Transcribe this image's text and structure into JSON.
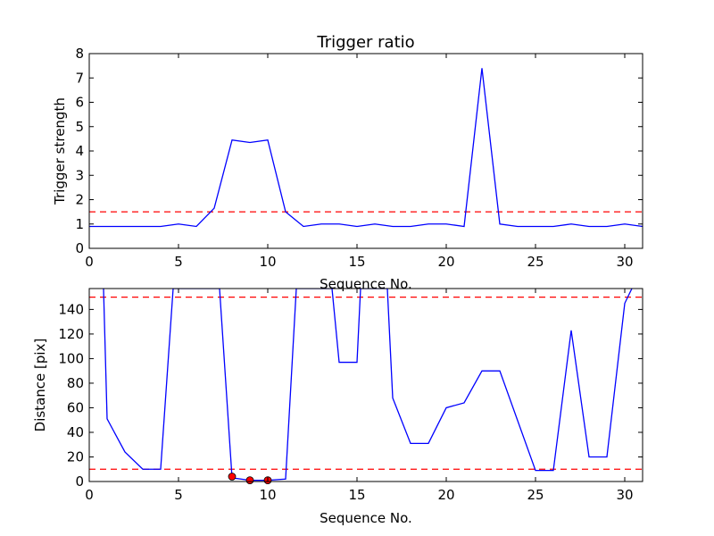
{
  "colors": {
    "line": "#0000ff",
    "threshold": "#ff0000",
    "marker": "#ff0000",
    "axes": "#000000"
  },
  "chart_data": [
    {
      "type": "line",
      "title": "Trigger ratio",
      "xlabel": "Sequence No.",
      "ylabel": "Trigger strength",
      "xlim": [
        0,
        31
      ],
      "ylim": [
        0,
        8
      ],
      "xticks": [
        "0",
        "5",
        "10",
        "15",
        "20",
        "25",
        "30"
      ],
      "yticks": [
        "0",
        "1",
        "2",
        "3",
        "4",
        "5",
        "6",
        "7",
        "8"
      ],
      "grid": false,
      "series": [
        {
          "x": [
            0,
            1,
            2,
            3,
            4,
            5,
            6,
            7,
            8,
            9,
            10,
            11,
            12,
            13,
            14,
            15,
            16,
            17,
            18,
            19,
            20,
            21,
            22,
            23,
            24,
            25,
            26,
            27,
            28,
            29,
            30,
            31
          ],
          "values": [
            0.9,
            0.9,
            0.9,
            0.9,
            0.9,
            1.0,
            0.9,
            1.65,
            4.45,
            4.35,
            4.45,
            1.5,
            0.9,
            1.0,
            1.0,
            0.9,
            1.0,
            0.9,
            0.9,
            1.0,
            1.0,
            0.9,
            7.4,
            1.0,
            0.9,
            0.9,
            0.9,
            1.0,
            0.9,
            0.9,
            1.0,
            0.9
          ]
        }
      ],
      "hlines": [
        1.5
      ]
    },
    {
      "type": "line",
      "title": "",
      "xlabel": "Sequence No.",
      "ylabel": "Distance [pix]",
      "xlim": [
        0,
        31
      ],
      "ylim": [
        0,
        157
      ],
      "xticks": [
        "0",
        "5",
        "10",
        "15",
        "20",
        "25",
        "30"
      ],
      "yticks": [
        "0",
        "20",
        "40",
        "60",
        "80",
        "100",
        "120",
        "140"
      ],
      "grid": false,
      "series": [
        {
          "x": [
            0.8,
            1,
            2,
            3,
            4,
            4.7,
            7.3,
            8,
            9,
            10,
            11,
            11.6,
            13.6,
            14,
            15,
            15.2,
            16.7,
            17,
            18,
            19,
            20,
            21,
            22,
            23,
            25,
            26,
            27,
            28,
            29,
            30,
            30.4
          ],
          "values": [
            157,
            51,
            24,
            10,
            10,
            157,
            157,
            3,
            1,
            1,
            2,
            157,
            157,
            97,
            97,
            157,
            157,
            68,
            31,
            31,
            60,
            64,
            90,
            90,
            9,
            9,
            123,
            20,
            20,
            145,
            157
          ]
        }
      ],
      "markers": {
        "x": [
          8,
          9,
          10
        ],
        "y": [
          4,
          1,
          1
        ]
      },
      "hlines": [
        150,
        10
      ]
    }
  ]
}
